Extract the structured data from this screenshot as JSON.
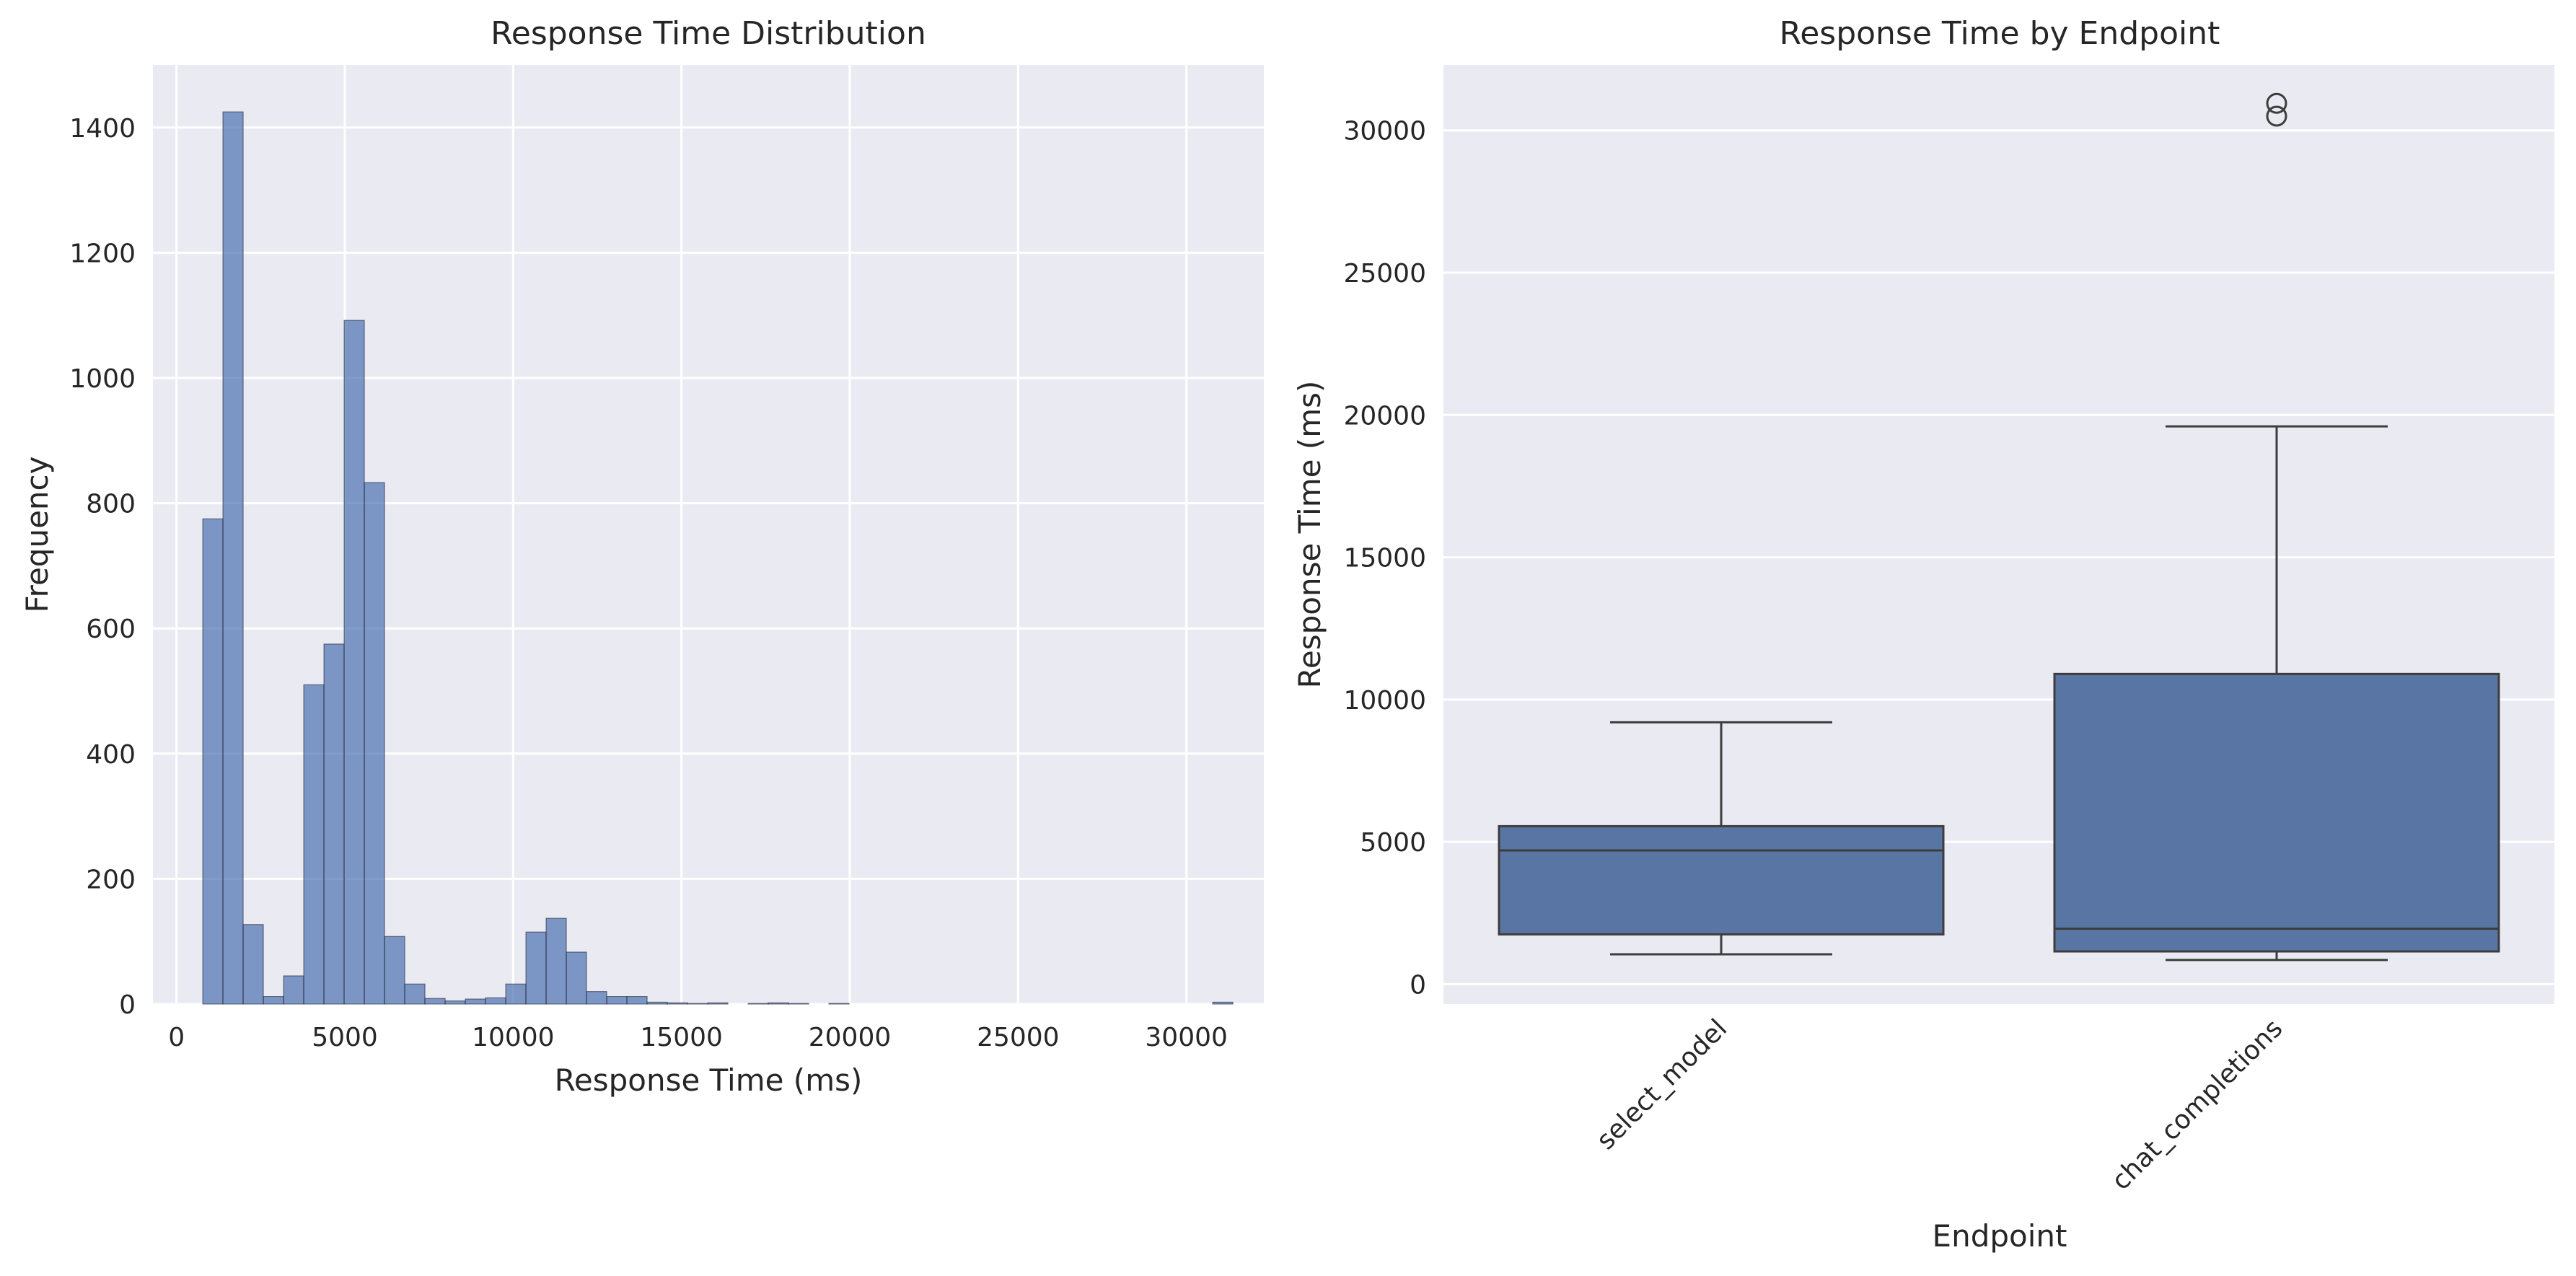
{
  "chart_data": [
    {
      "type": "bar",
      "title": "Response Time Distribution",
      "xlabel": "Response Time (ms)",
      "ylabel": "Frequency",
      "xlim": [
        -700,
        32300
      ],
      "ylim": [
        0,
        1500
      ],
      "xticks": [
        0,
        5000,
        10000,
        15000,
        20000,
        25000,
        30000
      ],
      "yticks": [
        0,
        200,
        400,
        600,
        800,
        1000,
        1200,
        1400
      ],
      "bin_width": 600,
      "bins": [
        {
          "x0": 780,
          "value": 775
        },
        {
          "x0": 1380,
          "value": 1425
        },
        {
          "x0": 1980,
          "value": 127
        },
        {
          "x0": 2580,
          "value": 12
        },
        {
          "x0": 3180,
          "value": 45
        },
        {
          "x0": 3780,
          "value": 510
        },
        {
          "x0": 4380,
          "value": 575
        },
        {
          "x0": 4980,
          "value": 1092
        },
        {
          "x0": 5580,
          "value": 833
        },
        {
          "x0": 6180,
          "value": 108
        },
        {
          "x0": 6780,
          "value": 32
        },
        {
          "x0": 7380,
          "value": 9
        },
        {
          "x0": 7980,
          "value": 5
        },
        {
          "x0": 8580,
          "value": 8
        },
        {
          "x0": 9180,
          "value": 10
        },
        {
          "x0": 9780,
          "value": 32
        },
        {
          "x0": 10380,
          "value": 115
        },
        {
          "x0": 10980,
          "value": 137
        },
        {
          "x0": 11580,
          "value": 83
        },
        {
          "x0": 12180,
          "value": 20
        },
        {
          "x0": 12780,
          "value": 12
        },
        {
          "x0": 13380,
          "value": 12
        },
        {
          "x0": 13980,
          "value": 3
        },
        {
          "x0": 14580,
          "value": 2
        },
        {
          "x0": 15180,
          "value": 1
        },
        {
          "x0": 15780,
          "value": 2
        },
        {
          "x0": 16380,
          "value": 0
        },
        {
          "x0": 16980,
          "value": 1
        },
        {
          "x0": 17580,
          "value": 2
        },
        {
          "x0": 18180,
          "value": 1
        },
        {
          "x0": 18780,
          "value": 0
        },
        {
          "x0": 19380,
          "value": 1
        },
        {
          "x0": 19980,
          "value": 0
        },
        {
          "x0": 30780,
          "value": 3
        }
      ],
      "bar_color": "#4c72b0",
      "grid": true
    },
    {
      "type": "box",
      "title": "Response Time by Endpoint",
      "xlabel": "Endpoint",
      "ylabel": "Response Time (ms)",
      "ylim": [
        -700,
        32300
      ],
      "yticks": [
        0,
        5000,
        10000,
        15000,
        20000,
        25000,
        30000
      ],
      "categories": [
        "select_model",
        "chat_completions"
      ],
      "boxes": [
        {
          "category": "select_model",
          "whisker_low": 1050,
          "q1": 1750,
          "median": 4700,
          "q3": 5550,
          "whisker_high": 9200,
          "outliers": []
        },
        {
          "category": "chat_completions",
          "whisker_low": 850,
          "q1": 1150,
          "median": 1950,
          "q3": 10900,
          "whisker_high": 19600,
          "outliers": [
            30500,
            30950
          ]
        }
      ],
      "box_color": "#5975a4",
      "grid": true
    }
  ]
}
